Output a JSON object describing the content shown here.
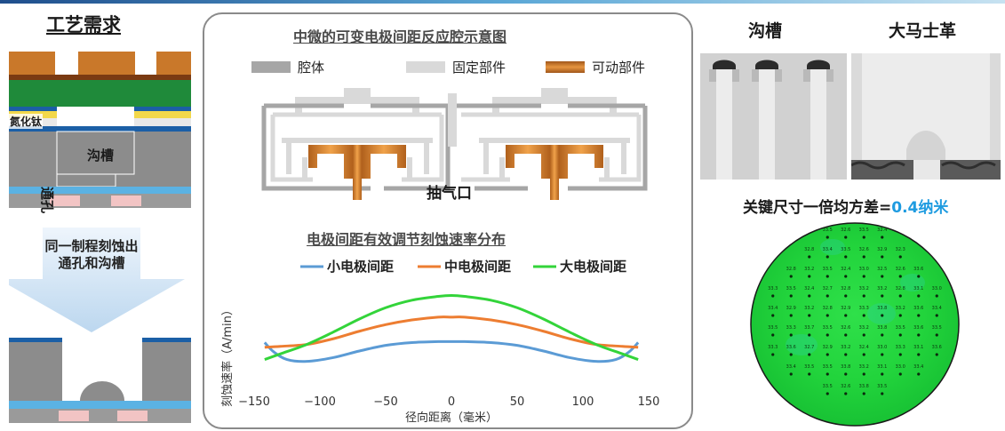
{
  "left": {
    "title": "工艺需求",
    "label_tin": "氮化钛",
    "label_trench": "沟槽",
    "label_via": "通孔",
    "arrow_text": "同一制程刻蚀出通孔和沟槽"
  },
  "middle": {
    "schematic_title": "中微的可变电极间距反应腔示意图",
    "legend": [
      {
        "label": "腔体",
        "color": "#a6a6a6"
      },
      {
        "label": "固定部件",
        "color": "#d9d9d9"
      },
      {
        "label": "可动部件",
        "color": "#d07a20"
      }
    ],
    "pump_label": "抽气口",
    "chart_title": "电极间距有效调节刻蚀速率分布"
  },
  "chart_data": {
    "type": "line",
    "xlabel": "径向距离（毫米）",
    "ylabel": "刻蚀速率（A/min）",
    "xlim": [
      -150,
      150
    ],
    "xticks": [
      -150,
      -100,
      -50,
      0,
      50,
      100,
      150
    ],
    "series": [
      {
        "name": "小电极间距",
        "color": "#5b9bd5",
        "x": [
          -142,
          -135,
          -125,
          -110,
          -90,
          -70,
          -50,
          -30,
          -10,
          0,
          10,
          30,
          50,
          70,
          90,
          110,
          125,
          135,
          142
        ],
        "y": [
          4.2,
          3.2,
          2.4,
          2.2,
          2.6,
          3.3,
          3.9,
          4.2,
          4.3,
          4.3,
          4.3,
          4.2,
          3.9,
          3.3,
          2.6,
          2.2,
          2.4,
          3.2,
          4.2
        ]
      },
      {
        "name": "中电极间距",
        "color": "#ed7d31",
        "x": [
          -142,
          -130,
          -110,
          -90,
          -70,
          -50,
          -30,
          -10,
          0,
          10,
          30,
          50,
          70,
          90,
          110,
          130,
          142
        ],
        "y": [
          3.7,
          3.8,
          4.0,
          4.6,
          5.4,
          6.1,
          6.6,
          6.9,
          6.9,
          6.9,
          6.6,
          6.1,
          5.4,
          4.6,
          4.0,
          3.8,
          3.7
        ]
      },
      {
        "name": "大电极间距",
        "color": "#33d43a",
        "x": [
          -142,
          -130,
          -110,
          -90,
          -70,
          -50,
          -30,
          -10,
          0,
          10,
          30,
          50,
          70,
          90,
          110,
          130,
          142
        ],
        "y": [
          2.4,
          3.0,
          4.0,
          5.3,
          6.7,
          7.9,
          8.7,
          9.1,
          9.2,
          9.1,
          8.7,
          7.9,
          6.7,
          5.3,
          4.0,
          3.0,
          2.4
        ]
      }
    ],
    "ylim": [
      0,
      10
    ]
  },
  "right": {
    "title_trench": "沟槽",
    "title_damascene": "大马士革",
    "cd_label": "关键尺寸一倍均方差=",
    "cd_value": "0.4纳米",
    "wafer_rows": [
      [
        "33.5",
        "32.6",
        "33.5",
        "32.4"
      ],
      [
        "32.8",
        "33.4",
        "33.5",
        "32.6",
        "32.9",
        "32.3"
      ],
      [
        "32.8",
        "33.2",
        "33.5",
        "32.4",
        "33.0",
        "32.5",
        "32.6",
        "33.6"
      ],
      [
        "33.3",
        "33.5",
        "32.4",
        "32.7",
        "32.8",
        "33.2",
        "33.2",
        "32.8",
        "33.1",
        "33.0"
      ],
      [
        "33.4",
        "32.9",
        "33.2",
        "32.8",
        "32.9",
        "33.3",
        "33.8",
        "33.2",
        "33.6",
        "33.4"
      ],
      [
        "33.5",
        "33.3",
        "33.7",
        "33.5",
        "32.6",
        "33.2",
        "33.8",
        "33.5",
        "33.6",
        "33.5"
      ],
      [
        "33.3",
        "33.6",
        "32.7",
        "32.9",
        "33.2",
        "32.4",
        "33.0",
        "33.3",
        "33.1",
        "33.6"
      ],
      [
        "33.4",
        "33.5",
        "33.5",
        "33.8",
        "33.2",
        "33.1",
        "33.0",
        "33.4"
      ],
      [
        "33.5",
        "32.6",
        "33.8",
        "33.5"
      ]
    ]
  }
}
